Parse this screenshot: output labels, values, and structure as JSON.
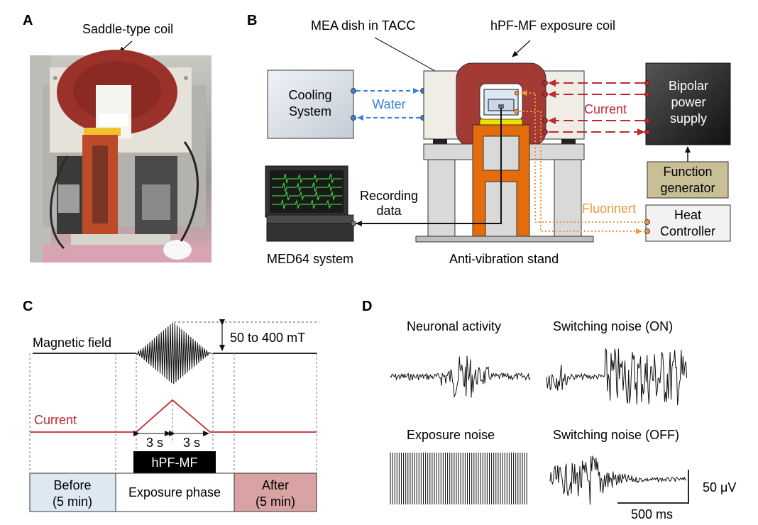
{
  "panels": {
    "A": {
      "letter": "A",
      "caption": "Saddle-type coil"
    },
    "B": {
      "letter": "B",
      "mea_label": "MEA dish in TACC",
      "coil_label": "hPF-MF exposure coil",
      "cooling_label": [
        "Cooling",
        "System"
      ],
      "water_label": "Water",
      "current_label": "Current",
      "power_label": [
        "Bipolar",
        "power",
        "supply"
      ],
      "function_label": [
        "Function",
        "generator"
      ],
      "recording_label": [
        "Recording",
        "data"
      ],
      "fluorinert_label": "Fluorinert",
      "heat_label": [
        "Heat",
        "Controller"
      ],
      "med64_label": "MED64 system",
      "stand_label": "Anti-vibration stand"
    },
    "C": {
      "letter": "C",
      "magnetic_label": "Magnetic field",
      "range_label": "50 to 400 mT",
      "current_label": "Current",
      "ramp_up": "3 s",
      "ramp_down": "3 s",
      "exposure_bar": "hPF-MF",
      "phases": [
        {
          "lines": [
            "Before",
            "(5 min)"
          ],
          "color": "#dde8f2"
        },
        {
          "lines": [
            "Exposure phase"
          ],
          "color": "#ffffff"
        },
        {
          "lines": [
            "After",
            "(5 min)"
          ],
          "color": "#d9a3a3"
        }
      ]
    },
    "D": {
      "letter": "D",
      "traces": [
        {
          "title": "Neuronal activity"
        },
        {
          "title": "Switching noise (ON)"
        },
        {
          "title": "Exposure noise"
        },
        {
          "title": "Switching noise (OFF)"
        }
      ],
      "scale_amp": "50 μV",
      "scale_time": "500 ms"
    }
  },
  "colors": {
    "coil": "#a33a33",
    "stand": "#d9d9d9",
    "frame": "#e46c0a",
    "arrow_current": "#c0292e",
    "arrow_water": "#3a7fd5",
    "arrow_fluorinert": "#f29540",
    "current_trace": "#c0292e"
  }
}
